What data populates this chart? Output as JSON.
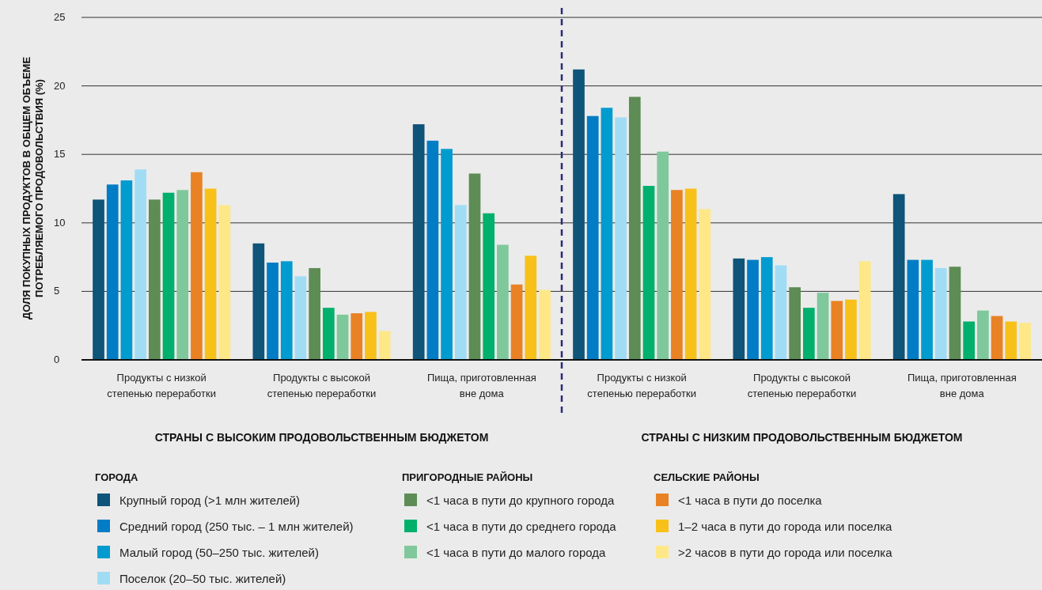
{
  "chart_data": {
    "type": "bar",
    "ylabel": "ДОЛЯ ПОКУПНЫХ ПРОДУКТОВ В ОБЩЕМ ОБЪЕМЕ\nПОТРЕБЛЯЕМОГО ПРОДОВОЛЬСТВИЯ (%)",
    "categories": [
      "Продукты с низкой\nстепенью переработки",
      "Продукты с высокой\nстепенью переработки",
      "Пища, приготовленная\nвне дома",
      "Продукты с низкой\nстепенью переработки",
      "Продукты с высокой\nстепенью переработки",
      "Пища, приготовленная\nвне дома"
    ],
    "series": [
      {
        "name": "Крупный город (>1 млн жителей)",
        "color": "#0f5479",
        "values": [
          11.7,
          8.5,
          17.2,
          21.2,
          7.4,
          12.1
        ]
      },
      {
        "name": "Средний город (250 тыс. – 1 млн жителей)",
        "color": "#007dc5",
        "values": [
          12.8,
          7.1,
          16.0,
          17.8,
          7.3,
          7.3
        ]
      },
      {
        "name": "Малый город (50–250 тыс. жителей)",
        "color": "#009bcf",
        "values": [
          13.1,
          7.2,
          15.4,
          18.4,
          7.5,
          7.3
        ]
      },
      {
        "name": "Поселок (20–50 тыс. жителей)",
        "color": "#a1dcf5",
        "values": [
          13.9,
          6.1,
          11.3,
          17.7,
          6.9,
          6.7
        ]
      },
      {
        "name": "<1 часа в пути до крупного города",
        "color": "#5d8c55",
        "values": [
          11.7,
          6.7,
          13.6,
          19.2,
          5.3,
          6.8
        ]
      },
      {
        "name": "<1 часа в пути до среднего города",
        "color": "#00b06c",
        "values": [
          12.2,
          3.8,
          10.7,
          12.7,
          3.8,
          2.8
        ]
      },
      {
        "name": "<1 часа в пути до малого города",
        "color": "#7fc89b",
        "values": [
          12.4,
          3.3,
          8.4,
          15.2,
          4.9,
          3.6
        ]
      },
      {
        "name": "<1 часа в пути до поселка",
        "color": "#e98224",
        "values": [
          13.7,
          3.4,
          5.5,
          12.4,
          4.3,
          3.2
        ]
      },
      {
        "name": "1–2 часа в пути до города или поселка",
        "color": "#f8c11a",
        "values": [
          12.5,
          3.5,
          7.6,
          12.5,
          4.4,
          2.8
        ]
      },
      {
        "name": ">2 часов в пути до города или поселка",
        "color": "#fee787",
        "values": [
          11.3,
          2.1,
          5.1,
          11.0,
          7.2,
          2.7
        ]
      }
    ],
    "ylim": [
      0,
      25
    ],
    "yticks": [
      0,
      5,
      10,
      15,
      20,
      25
    ],
    "grid": "y",
    "legend": "bottom",
    "annotations": [
      "СТРАНЫ С ВЫСОКИМ ПРОДОВОЛЬСТВЕННЫМ БЮДЖЕТОМ",
      "СТРАНЫ С НИЗКИМ ПРОДОВОЛЬСТВЕННЫМ БЮДЖЕТОМ",
      "ГОРОДА",
      "ПРИГОРОДНЫЕ РАЙОНЫ",
      "СЕЛЬСКИЕ РАЙОНЫ"
    ]
  }
}
